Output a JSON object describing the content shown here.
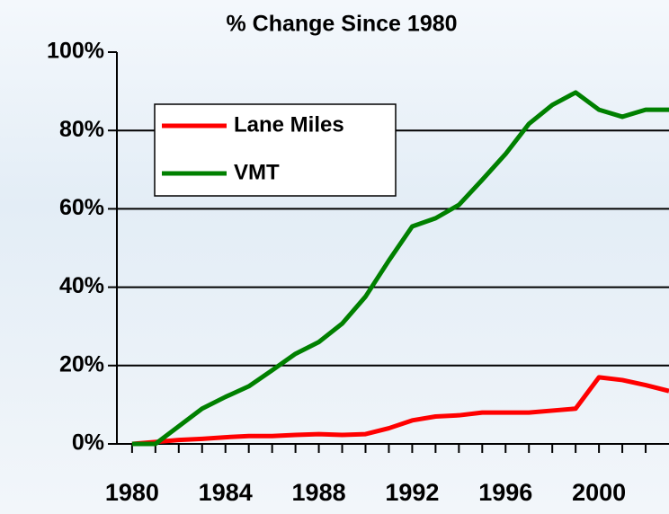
{
  "chart_data": {
    "type": "line",
    "title": "% Change Since 1980",
    "x": [
      1980,
      1981,
      1982,
      1983,
      1984,
      1985,
      1986,
      1987,
      1988,
      1989,
      1990,
      1991,
      1992,
      1993,
      1994,
      1995,
      1996,
      1997,
      1998,
      1999,
      2000,
      2001,
      2002,
      2003
    ],
    "series": [
      {
        "name": "Lane Miles",
        "color": "#ff0000",
        "values": [
          0,
          0.5,
          1,
          1.3,
          1.7,
          2,
          2,
          2.3,
          2.5,
          2.3,
          2.5,
          4,
          6,
          7,
          7.3,
          8,
          8,
          8,
          8.5,
          9,
          17,
          16.3,
          15,
          13.5
        ]
      },
      {
        "name": "VMT",
        "color": "#008000",
        "values": [
          0,
          0,
          4.5,
          9,
          12,
          14.7,
          18.8,
          23,
          26,
          30.7,
          37.6,
          46.8,
          55.5,
          57.6,
          61,
          67.4,
          74,
          81.7,
          86.5,
          89.7,
          85.3,
          83.5,
          85.3,
          85.3
        ]
      }
    ],
    "xlim": [
      1979.35,
      2003
    ],
    "xticks": [
      1980,
      1984,
      1988,
      1992,
      1996,
      2000
    ],
    "x_minor_ticks": [
      1981,
      1982,
      1983,
      1985,
      1986,
      1987,
      1989,
      1990,
      1991,
      1993,
      1994,
      1995,
      1997,
      1998,
      1999,
      2001,
      2002
    ],
    "ylim": [
      0,
      100
    ],
    "yticks": [
      {
        "value": 0,
        "label": "0%"
      },
      {
        "value": 20,
        "label": "20%"
      },
      {
        "value": 40,
        "label": "40%"
      },
      {
        "value": 60,
        "label": "60%"
      },
      {
        "value": 80,
        "label": "80%"
      },
      {
        "value": 100,
        "label": "100%"
      }
    ],
    "grid": true,
    "legend": "upper left"
  }
}
